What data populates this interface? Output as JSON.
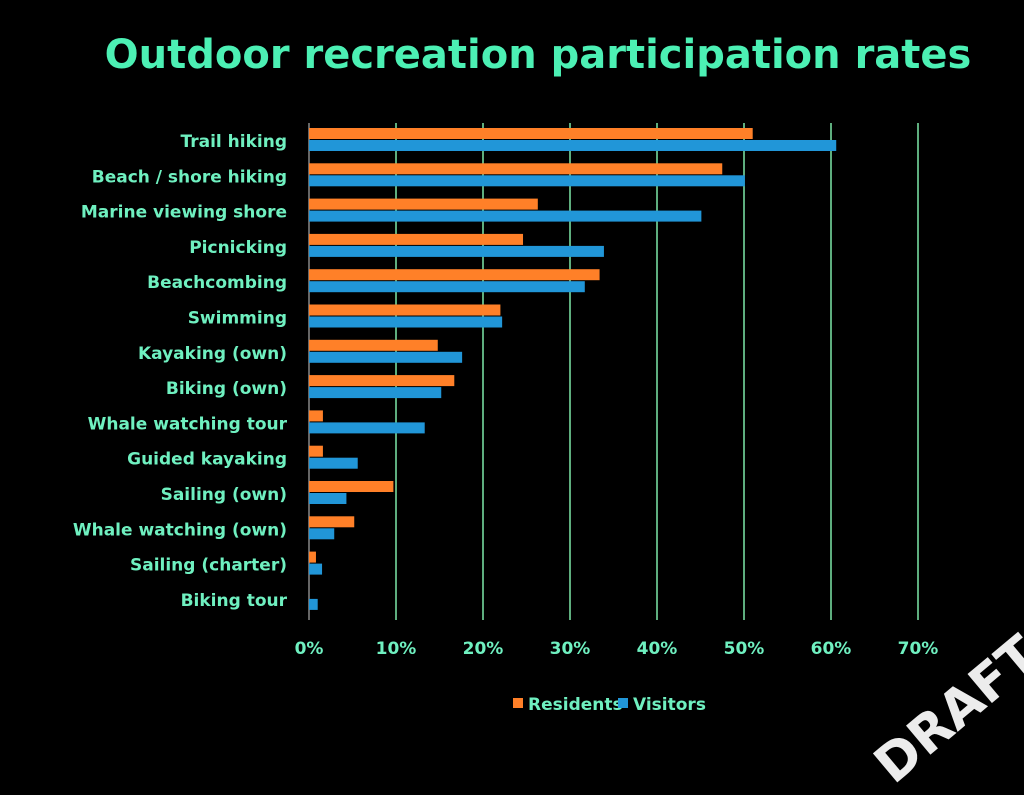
{
  "chart_data": {
    "type": "bar",
    "orientation": "horizontal",
    "title": "Outdoor recreation participation rates",
    "categories": [
      "Trail hiking",
      "Beach / shore hiking",
      "Marine viewing shore",
      "Picnicking",
      "Beachcombing",
      "Swimming",
      "Kayaking (own)",
      "Biking (own)",
      "Whale watching tour",
      "Guided kayaking",
      "Sailing (own)",
      "Whale watching (own)",
      "Sailing (charter)",
      "Biking tour"
    ],
    "series": [
      {
        "name": "Residents",
        "color": "#ff8028",
        "values": [
          51.0,
          47.5,
          26.3,
          24.6,
          33.4,
          22.0,
          14.8,
          16.7,
          1.6,
          1.6,
          9.7,
          5.2,
          0.8,
          0
        ]
      },
      {
        "name": "Visitors",
        "color": "#2196d8",
        "values": [
          60.6,
          50.1,
          45.1,
          33.9,
          31.7,
          22.2,
          17.6,
          15.2,
          13.3,
          5.6,
          4.3,
          2.9,
          1.5,
          1.0
        ]
      }
    ],
    "xlim": [
      0,
      70
    ],
    "tick_labels": [
      "0%",
      "10%",
      "20%",
      "30%",
      "40%",
      "50%",
      "60%",
      "70%"
    ],
    "grid": true,
    "grid_color": "#7ee8a8",
    "legend_position": "bottom"
  },
  "watermark": "DRAFT"
}
